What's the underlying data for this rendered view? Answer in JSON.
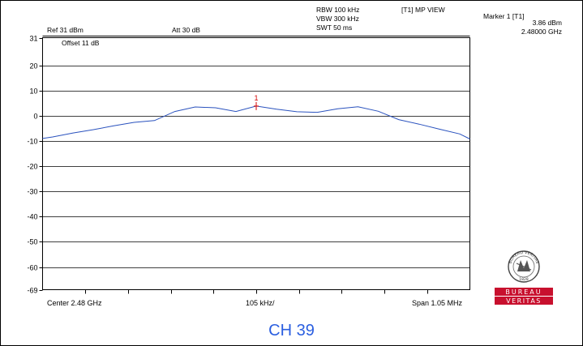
{
  "header": {
    "rbw": "RBW 100 kHz",
    "vbw": "VBW 300 kHz",
    "swt": "SWT 50 ms",
    "view": "[T1] MP VIEW",
    "ref": "Ref 31 dBm",
    "att": "Att  30 dB",
    "offset": "Offset 11 dB"
  },
  "marker": {
    "title": "Marker 1 [T1]",
    "level": "3.86 dBm",
    "freq": "2.48000 GHz",
    "label": "1"
  },
  "footer": {
    "center": "Center 2.48 GHz",
    "div": "105 kHz/",
    "span": "Span 1.05 MHz"
  },
  "caption": "CH 39",
  "logo": {
    "word1": "BUREAU",
    "word2": "VERITAS",
    "year": "1828",
    "ring_text": "BUREAU VERITAS",
    "color": "#c8102e"
  },
  "colors": {
    "trace": "#2a52be",
    "marker": "#d40000",
    "caption": "#2b5fe0"
  },
  "chart_data": {
    "type": "line",
    "title": "",
    "xlabel": "",
    "ylabel": "",
    "x_unit": "GHz",
    "y_unit": "dBm",
    "xlim": [
      2.479475,
      2.480525
    ],
    "ylim": [
      -69,
      31
    ],
    "y_ticks": [
      31,
      20,
      10,
      0,
      -10,
      -20,
      -30,
      -40,
      -50,
      -60,
      -69
    ],
    "grid": true,
    "series": [
      {
        "x": [
          2.479475,
          2.4795,
          2.47955,
          2.4796,
          2.47965,
          2.4797,
          2.47975,
          2.4798,
          2.47985,
          2.4799,
          2.47995,
          2.48,
          2.48005,
          2.4801,
          2.48015,
          2.4802,
          2.48025,
          2.4803,
          2.48035,
          2.4804,
          2.48045,
          2.4805,
          2.480525
        ],
        "y": [
          -9,
          -8.4,
          -6.8,
          -5.5,
          -4,
          -2.6,
          -1.9,
          1.7,
          3.5,
          3.2,
          1.7,
          3.86,
          2.6,
          1.6,
          1.4,
          2.8,
          3.6,
          1.8,
          -1.5,
          -3.3,
          -5.3,
          -7.2,
          -9.2
        ]
      }
    ],
    "markers": [
      {
        "name": "1",
        "x": 2.48,
        "y": 3.86
      }
    ]
  }
}
